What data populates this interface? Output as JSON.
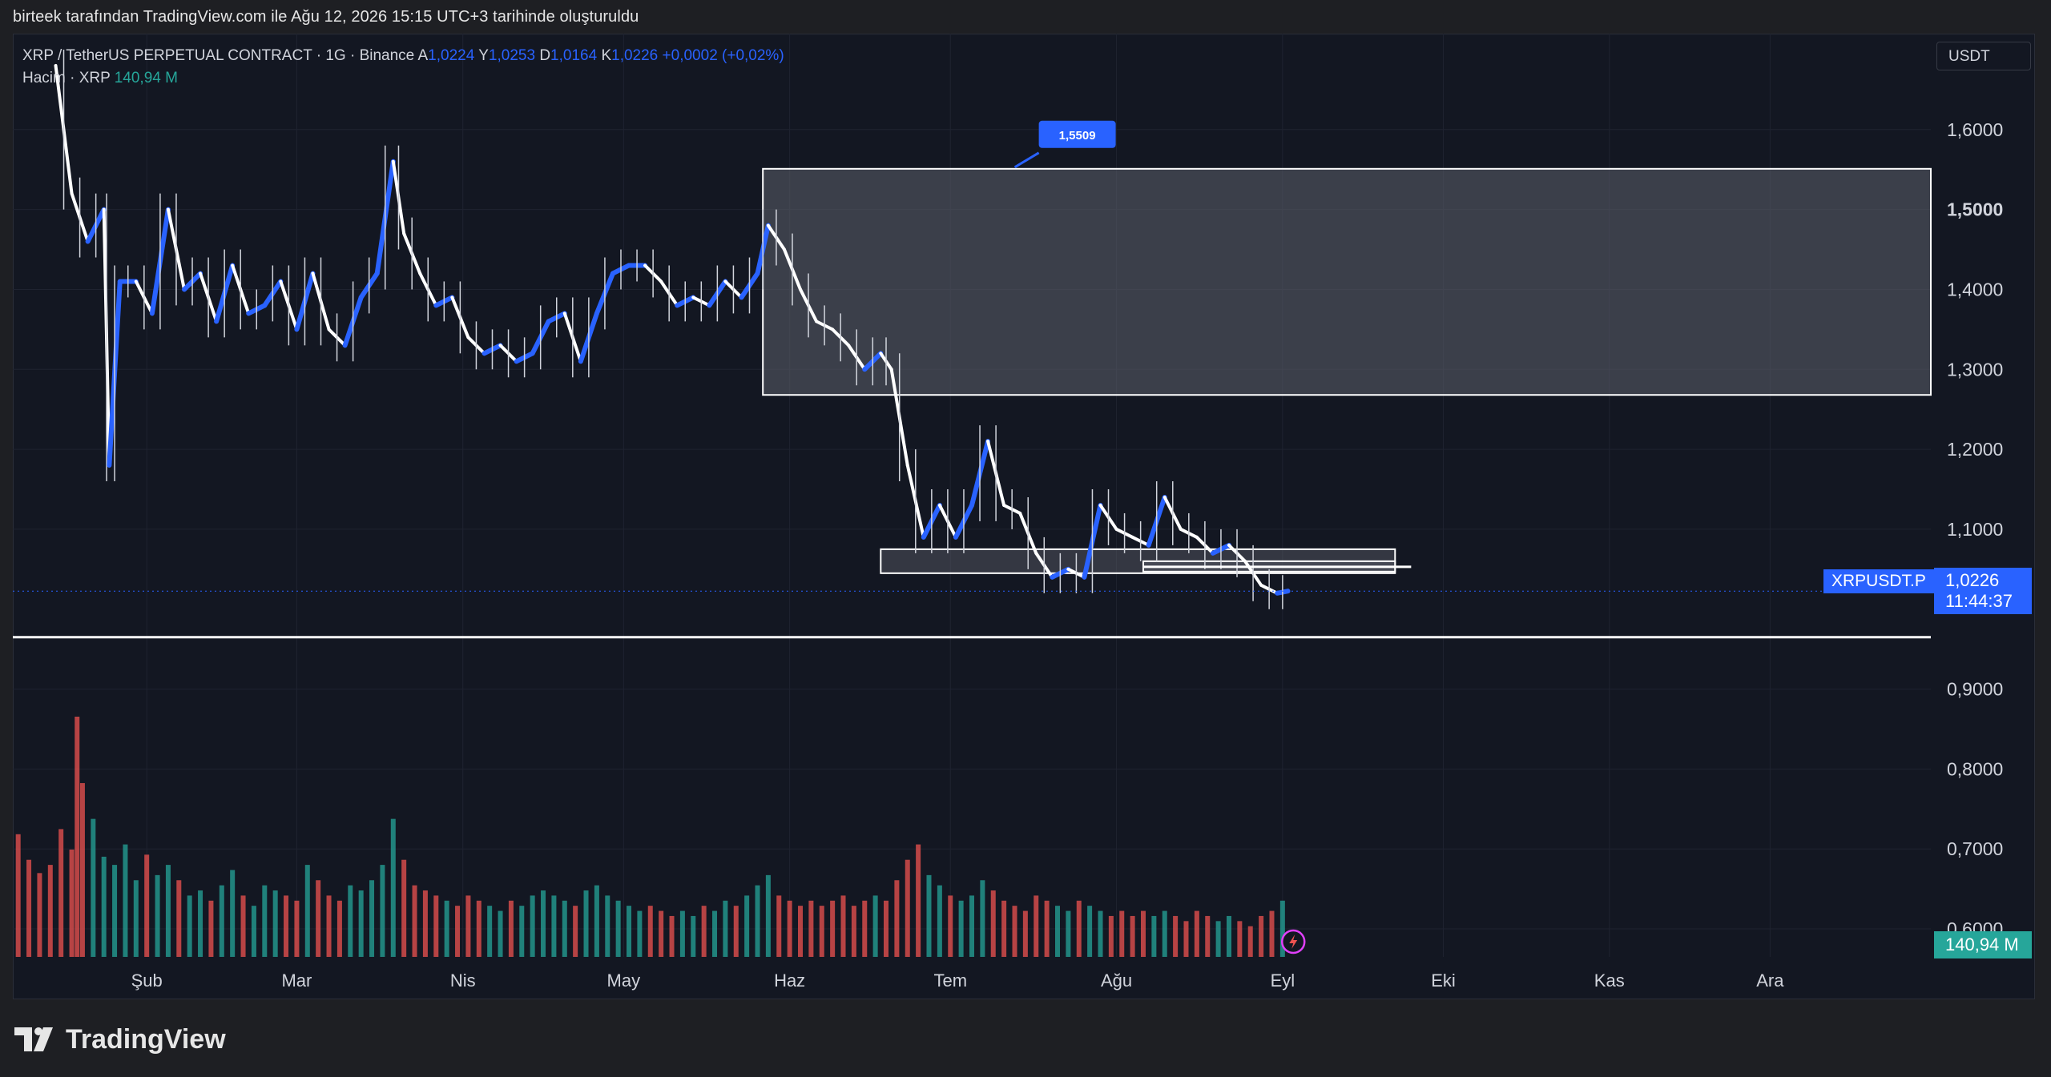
{
  "header": {
    "watermark": "birteek tarafından TradingView.com ile Ağu 12, 2026 15:15 UTC+3 tarihinde oluşturuldu"
  },
  "legend": {
    "symbol": "XRP / TetherUS PERPETUAL CONTRACT · 1G · Binance",
    "open_label": "A",
    "open": "1,0224",
    "high_label": "Y",
    "high": "1,0253",
    "low_label": "D",
    "low": "1,0164",
    "close_label": "K",
    "close": "1,0226",
    "change": "+0,0002 (+0,02%)",
    "volume_label": "Hacim · XRP",
    "volume": "140,94 M"
  },
  "toolbar": {
    "currency": "USDT"
  },
  "price_tag": {
    "symbol": "XRPUSDT.P",
    "price": "1,0226",
    "countdown": "11:44:37"
  },
  "volume_tag": "140,94 M",
  "annotation": {
    "callout": "1,5509"
  },
  "brand": {
    "name": "TradingView"
  },
  "colors": {
    "background": "#131722",
    "up": "#2962ff",
    "down": "#ffffff",
    "volume_up": "#26a69a",
    "volume_down": "#ef5350",
    "accent": "#2962ff",
    "zone_fill": "#5d606b"
  },
  "icons": {
    "flash": "lightning-icon",
    "logo": "tradingview-logo-icon"
  },
  "chart_data": {
    "type": "line",
    "title": "",
    "xlabel": "",
    "ylabel": "",
    "x_tick_labels": [
      "Şub",
      "Mar",
      "Nis",
      "May",
      "Haz",
      "Tem",
      "Ağu",
      "Eyl",
      "Eki",
      "Kas",
      "Ara"
    ],
    "y_tick_labels": [
      "1,6000",
      "1,5000",
      "1,4000",
      "1,3000",
      "1,2000",
      "1,1000",
      "0,9000",
      "0,8000",
      "0,7000",
      "0,6000"
    ],
    "y_ticks": [
      1.6,
      1.5,
      1.4,
      1.3,
      1.2,
      1.1,
      0.9,
      0.8,
      0.7,
      0.6
    ],
    "ylim": [
      0.565,
      1.72
    ],
    "xlim": [
      "2026-01-07",
      "2026-12-31"
    ],
    "grid": true,
    "series": [
      {
        "values": [
          [
            "2026-01-15",
            1.68
          ],
          [
            "2026-01-18",
            1.52
          ],
          [
            "2026-01-21",
            1.46
          ],
          [
            "2026-01-24",
            1.5
          ],
          [
            "2026-01-25",
            1.18
          ],
          [
            "2026-01-27",
            1.41
          ],
          [
            "2026-01-30",
            1.41
          ],
          [
            "2026-02-02",
            1.37
          ],
          [
            "2026-02-05",
            1.5
          ],
          [
            "2026-02-08",
            1.4
          ],
          [
            "2026-02-11",
            1.42
          ],
          [
            "2026-02-14",
            1.36
          ],
          [
            "2026-02-17",
            1.43
          ],
          [
            "2026-02-20",
            1.37
          ],
          [
            "2026-02-23",
            1.38
          ],
          [
            "2026-02-26",
            1.41
          ],
          [
            "2026-03-01",
            1.35
          ],
          [
            "2026-03-04",
            1.42
          ],
          [
            "2026-03-07",
            1.35
          ],
          [
            "2026-03-10",
            1.33
          ],
          [
            "2026-03-13",
            1.39
          ],
          [
            "2026-03-16",
            1.42
          ],
          [
            "2026-03-19",
            1.56
          ],
          [
            "2026-03-21",
            1.47
          ],
          [
            "2026-03-24",
            1.42
          ],
          [
            "2026-03-27",
            1.38
          ],
          [
            "2026-03-30",
            1.39
          ],
          [
            "2026-04-02",
            1.34
          ],
          [
            "2026-04-05",
            1.32
          ],
          [
            "2026-04-08",
            1.33
          ],
          [
            "2026-04-11",
            1.31
          ],
          [
            "2026-04-14",
            1.32
          ],
          [
            "2026-04-17",
            1.36
          ],
          [
            "2026-04-20",
            1.37
          ],
          [
            "2026-04-23",
            1.31
          ],
          [
            "2026-04-26",
            1.37
          ],
          [
            "2026-04-29",
            1.42
          ],
          [
            "2026-05-02",
            1.43
          ],
          [
            "2026-05-05",
            1.43
          ],
          [
            "2026-05-08",
            1.41
          ],
          [
            "2026-05-11",
            1.38
          ],
          [
            "2026-05-14",
            1.39
          ],
          [
            "2026-05-17",
            1.38
          ],
          [
            "2026-05-20",
            1.41
          ],
          [
            "2026-05-23",
            1.39
          ],
          [
            "2026-05-26",
            1.42
          ],
          [
            "2026-05-28",
            1.48
          ],
          [
            "2026-05-31",
            1.45
          ],
          [
            "2026-06-03",
            1.4
          ],
          [
            "2026-06-06",
            1.36
          ],
          [
            "2026-06-09",
            1.35
          ],
          [
            "2026-06-12",
            1.33
          ],
          [
            "2026-06-15",
            1.3
          ],
          [
            "2026-06-18",
            1.32
          ],
          [
            "2026-06-20",
            1.3
          ],
          [
            "2026-06-23",
            1.18
          ],
          [
            "2026-06-26",
            1.09
          ],
          [
            "2026-06-29",
            1.13
          ],
          [
            "2026-07-02",
            1.09
          ],
          [
            "2026-07-05",
            1.13
          ],
          [
            "2026-07-08",
            1.21
          ],
          [
            "2026-07-11",
            1.13
          ],
          [
            "2026-07-14",
            1.12
          ],
          [
            "2026-07-17",
            1.07
          ],
          [
            "2026-07-20",
            1.04
          ],
          [
            "2026-07-23",
            1.05
          ],
          [
            "2026-07-26",
            1.04
          ],
          [
            "2026-07-29",
            1.13
          ],
          [
            "2026-08-01",
            1.1
          ],
          [
            "2026-08-04",
            1.09
          ],
          [
            "2026-08-07",
            1.08
          ],
          [
            "2026-08-10",
            1.14
          ],
          [
            "2026-08-13",
            1.1
          ],
          [
            "2026-08-16",
            1.09
          ],
          [
            "2026-08-19",
            1.07
          ],
          [
            "2026-08-22",
            1.08
          ],
          [
            "2026-08-25",
            1.06
          ],
          [
            "2026-08-28",
            1.03
          ],
          [
            "2026-08-31",
            1.02
          ],
          [
            "2026-09-02",
            1.0226
          ]
        ]
      },
      {
        "name": "Hacim · XRP",
        "values": [
          [
            "2026-01-08",
            120
          ],
          [
            "2026-01-10",
            95
          ],
          [
            "2026-01-12",
            82
          ],
          [
            "2026-01-14",
            90
          ],
          [
            "2026-01-16",
            125
          ],
          [
            "2026-01-18",
            105
          ],
          [
            "2026-01-19",
            235
          ],
          [
            "2026-01-20",
            170
          ],
          [
            "2026-01-22",
            135
          ],
          [
            "2026-01-24",
            98
          ],
          [
            "2026-01-26",
            90
          ],
          [
            "2026-01-28",
            110
          ],
          [
            "2026-01-30",
            75
          ],
          [
            "2026-02-01",
            100
          ],
          [
            "2026-02-03",
            80
          ],
          [
            "2026-02-05",
            90
          ],
          [
            "2026-02-07",
            75
          ],
          [
            "2026-02-09",
            60
          ],
          [
            "2026-02-11",
            65
          ],
          [
            "2026-02-13",
            55
          ],
          [
            "2026-02-15",
            70
          ],
          [
            "2026-02-17",
            85
          ],
          [
            "2026-02-19",
            60
          ],
          [
            "2026-02-21",
            50
          ],
          [
            "2026-02-23",
            70
          ],
          [
            "2026-02-25",
            65
          ],
          [
            "2026-02-27",
            60
          ],
          [
            "2026-03-01",
            55
          ],
          [
            "2026-03-03",
            90
          ],
          [
            "2026-03-05",
            75
          ],
          [
            "2026-03-07",
            60
          ],
          [
            "2026-03-09",
            55
          ],
          [
            "2026-03-11",
            70
          ],
          [
            "2026-03-13",
            65
          ],
          [
            "2026-03-15",
            75
          ],
          [
            "2026-03-17",
            90
          ],
          [
            "2026-03-19",
            135
          ],
          [
            "2026-03-21",
            95
          ],
          [
            "2026-03-23",
            70
          ],
          [
            "2026-03-25",
            65
          ],
          [
            "2026-03-27",
            60
          ],
          [
            "2026-03-29",
            55
          ],
          [
            "2026-03-31",
            50
          ],
          [
            "2026-04-02",
            60
          ],
          [
            "2026-04-04",
            55
          ],
          [
            "2026-04-06",
            50
          ],
          [
            "2026-04-08",
            45
          ],
          [
            "2026-04-10",
            55
          ],
          [
            "2026-04-12",
            50
          ],
          [
            "2026-04-14",
            60
          ],
          [
            "2026-04-16",
            65
          ],
          [
            "2026-04-18",
            60
          ],
          [
            "2026-04-20",
            55
          ],
          [
            "2026-04-22",
            50
          ],
          [
            "2026-04-24",
            65
          ],
          [
            "2026-04-26",
            70
          ],
          [
            "2026-04-28",
            60
          ],
          [
            "2026-04-30",
            55
          ],
          [
            "2026-05-02",
            50
          ],
          [
            "2026-05-04",
            45
          ],
          [
            "2026-05-06",
            50
          ],
          [
            "2026-05-08",
            45
          ],
          [
            "2026-05-10",
            40
          ],
          [
            "2026-05-12",
            45
          ],
          [
            "2026-05-14",
            40
          ],
          [
            "2026-05-16",
            50
          ],
          [
            "2026-05-18",
            45
          ],
          [
            "2026-05-20",
            55
          ],
          [
            "2026-05-22",
            50
          ],
          [
            "2026-05-24",
            60
          ],
          [
            "2026-05-26",
            70
          ],
          [
            "2026-05-28",
            80
          ],
          [
            "2026-05-30",
            60
          ],
          [
            "2026-06-01",
            55
          ],
          [
            "2026-06-03",
            50
          ],
          [
            "2026-06-05",
            55
          ],
          [
            "2026-06-07",
            50
          ],
          [
            "2026-06-09",
            55
          ],
          [
            "2026-06-11",
            60
          ],
          [
            "2026-06-13",
            50
          ],
          [
            "2026-06-15",
            55
          ],
          [
            "2026-06-17",
            60
          ],
          [
            "2026-06-19",
            55
          ],
          [
            "2026-06-21",
            75
          ],
          [
            "2026-06-23",
            95
          ],
          [
            "2026-06-25",
            110
          ],
          [
            "2026-06-27",
            80
          ],
          [
            "2026-06-29",
            70
          ],
          [
            "2026-07-01",
            60
          ],
          [
            "2026-07-03",
            55
          ],
          [
            "2026-07-05",
            60
          ],
          [
            "2026-07-07",
            75
          ],
          [
            "2026-07-09",
            65
          ],
          [
            "2026-07-11",
            55
          ],
          [
            "2026-07-13",
            50
          ],
          [
            "2026-07-15",
            45
          ],
          [
            "2026-07-17",
            60
          ],
          [
            "2026-07-19",
            55
          ],
          [
            "2026-07-21",
            50
          ],
          [
            "2026-07-23",
            45
          ],
          [
            "2026-07-25",
            55
          ],
          [
            "2026-07-27",
            50
          ],
          [
            "2026-07-29",
            45
          ],
          [
            "2026-07-31",
            40
          ],
          [
            "2026-08-02",
            45
          ],
          [
            "2026-08-04",
            40
          ],
          [
            "2026-08-06",
            45
          ],
          [
            "2026-08-08",
            40
          ],
          [
            "2026-08-10",
            45
          ],
          [
            "2026-08-12",
            40
          ],
          [
            "2026-08-14",
            35
          ],
          [
            "2026-08-16",
            45
          ],
          [
            "2026-08-18",
            40
          ],
          [
            "2026-08-20",
            35
          ],
          [
            "2026-08-22",
            40
          ],
          [
            "2026-08-24",
            35
          ],
          [
            "2026-08-26",
            30
          ],
          [
            "2026-08-28",
            40
          ],
          [
            "2026-08-30",
            45
          ],
          [
            "2026-09-01",
            55
          ]
        ]
      }
    ],
    "zones": [
      {
        "kind": "rectangle",
        "from": "2026-05-27",
        "to": "2026-12-31",
        "top": 1.5509,
        "bottom": 1.268
      },
      {
        "kind": "rectangle",
        "from": "2026-06-18",
        "to": "2026-09-22",
        "top": 1.075,
        "bottom": 1.045
      },
      {
        "kind": "rectangle",
        "from": "2026-08-06",
        "to": "2026-09-22",
        "top": 1.06,
        "bottom": 1.047
      }
    ],
    "horizontal_lines": [
      0.965,
      1.053
    ],
    "last_price": 1.0226
  }
}
